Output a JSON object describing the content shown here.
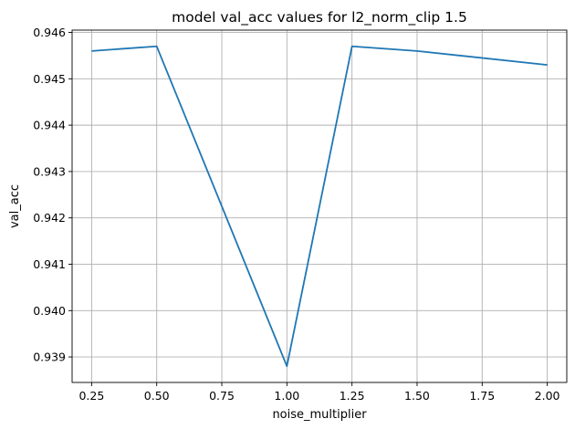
{
  "chart_data": {
    "type": "line",
    "title": "model val_acc values for l2_norm_clip 1.5",
    "xlabel": "noise_multiplier",
    "ylabel": "val_acc",
    "x": [
      0.25,
      0.5,
      1.0,
      1.25,
      1.5,
      2.0
    ],
    "series": [
      {
        "values": [
          0.9456,
          0.9457,
          0.9388,
          0.9457,
          0.9456,
          0.9453
        ],
        "color": "#1f77b4"
      }
    ],
    "xlim": [
      0.175,
      2.075
    ],
    "ylim": [
      0.93845,
      0.94605
    ],
    "xticks": [
      0.25,
      0.5,
      0.75,
      1.0,
      1.25,
      1.5,
      1.75,
      2.0
    ],
    "xtick_labels": [
      "0.25",
      "0.50",
      "0.75",
      "1.00",
      "1.25",
      "1.50",
      "1.75",
      "2.00"
    ],
    "yticks": [
      0.939,
      0.94,
      0.941,
      0.942,
      0.943,
      0.944,
      0.945,
      0.946
    ],
    "ytick_labels": [
      "0.939",
      "0.940",
      "0.941",
      "0.942",
      "0.943",
      "0.944",
      "0.945",
      "0.946"
    ],
    "grid": true,
    "colors": {
      "grid": "#b0b0b0",
      "axes": "#000000"
    }
  }
}
